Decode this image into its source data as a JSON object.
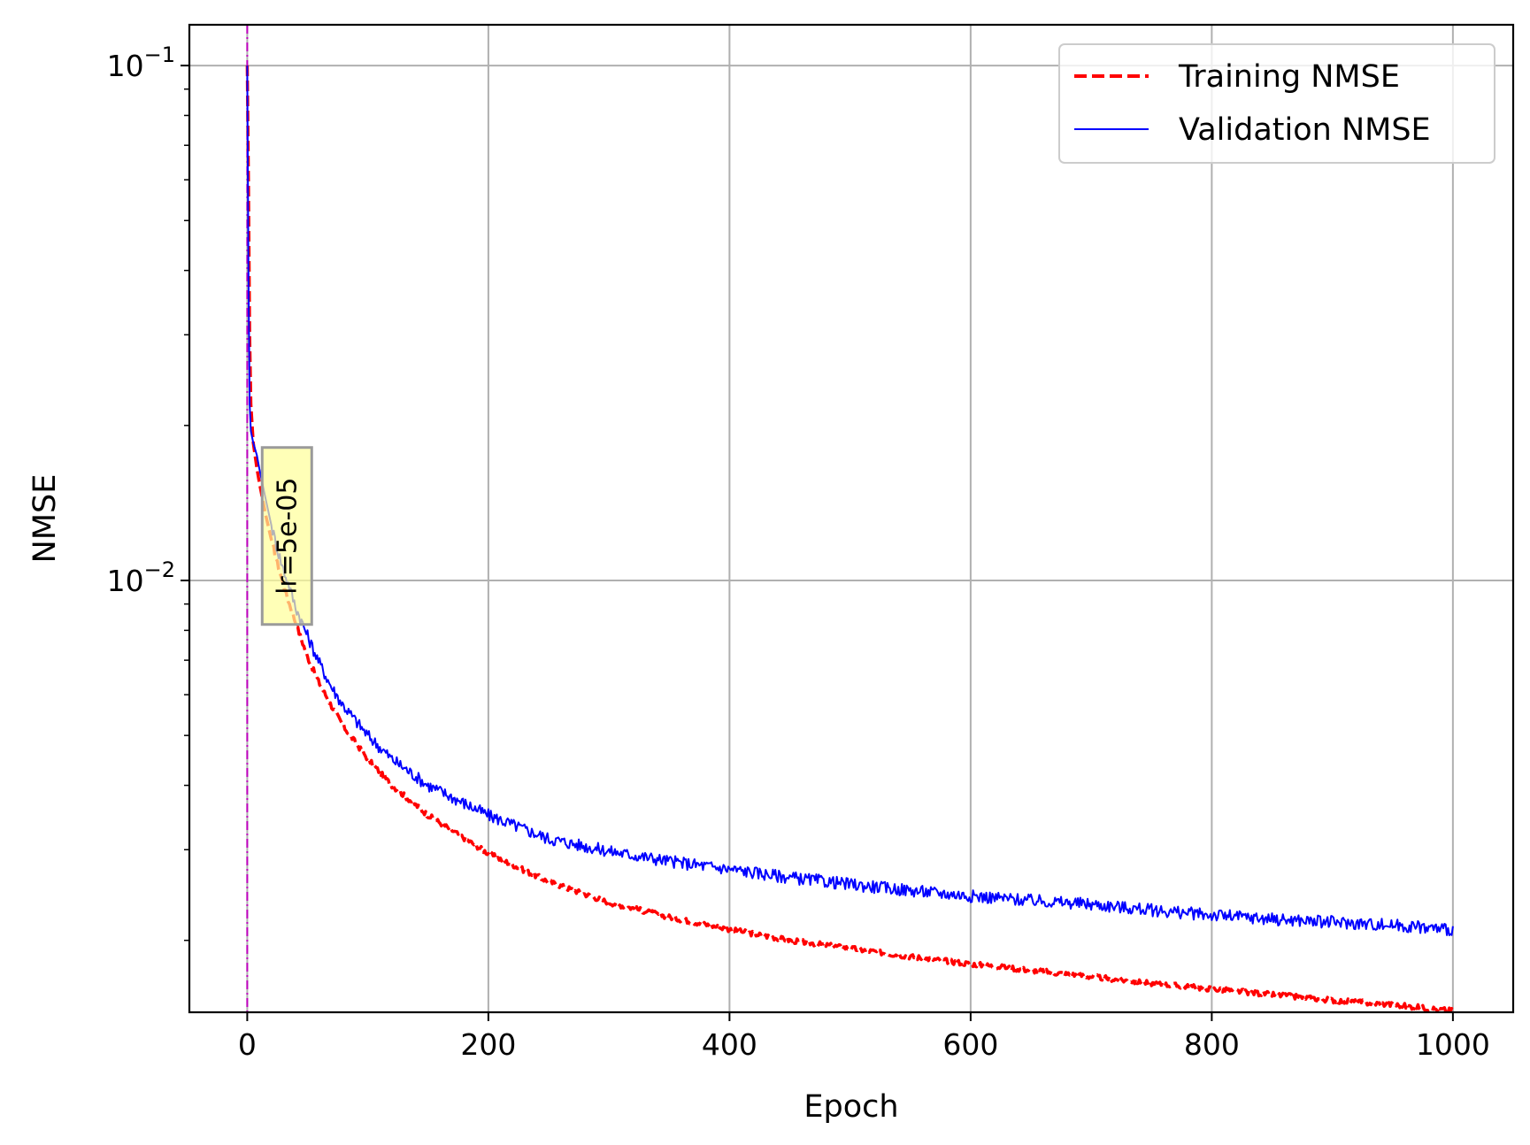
{
  "chart_data": {
    "type": "line",
    "xlabel": "Epoch",
    "ylabel": "NMSE",
    "xlim": [
      -48,
      1050
    ],
    "ylim": [
      0.00145,
      0.12
    ],
    "yscale": "log",
    "grid": true,
    "x_ticks": [
      0,
      200,
      400,
      600,
      800,
      1000
    ],
    "x_tick_labels": [
      "0",
      "200",
      "400",
      "600",
      "800",
      "1000"
    ],
    "y_major_ticks": [
      0.01,
      0.1
    ],
    "y_tick_labels": [
      {
        "base": "10",
        "exp": "−2",
        "value": 0.01
      },
      {
        "base": "10",
        "exp": "−1",
        "value": 0.1
      }
    ],
    "legend_position": "top-right",
    "series": [
      {
        "name": "Training NMSE",
        "color": "#ff0000",
        "style": "dashed",
        "x": [
          0,
          1,
          2,
          3,
          5,
          8,
          10,
          15,
          20,
          25,
          30,
          35,
          40,
          50,
          60,
          70,
          80,
          100,
          120,
          150,
          200,
          250,
          300,
          350,
          400,
          450,
          500,
          550,
          600,
          650,
          700,
          750,
          800,
          850,
          900,
          950,
          1000
        ],
        "values": [
          0.1,
          0.06,
          0.03,
          0.022,
          0.0185,
          0.0165,
          0.0155,
          0.0135,
          0.012,
          0.0108,
          0.0098,
          0.009,
          0.0083,
          0.0071,
          0.0063,
          0.0057,
          0.0052,
          0.0045,
          0.004,
          0.0035,
          0.00295,
          0.0026,
          0.00237,
          0.00222,
          0.0021,
          0.002,
          0.00193,
          0.00186,
          0.0018,
          0.00175,
          0.0017,
          0.00165,
          0.00161,
          0.00157,
          0.00153,
          0.0015,
          0.00146
        ]
      },
      {
        "name": "Validation NMSE",
        "color": "#0000ff",
        "style": "solid",
        "x": [
          0,
          1,
          2,
          3,
          5,
          8,
          10,
          15,
          20,
          25,
          30,
          35,
          40,
          50,
          60,
          70,
          80,
          100,
          120,
          150,
          200,
          250,
          300,
          350,
          400,
          450,
          500,
          550,
          600,
          650,
          700,
          750,
          800,
          850,
          900,
          950,
          1000
        ],
        "values": [
          0.1,
          0.04,
          0.022,
          0.0195,
          0.0185,
          0.0175,
          0.0165,
          0.0145,
          0.0128,
          0.0115,
          0.0105,
          0.0097,
          0.0089,
          0.0078,
          0.0069,
          0.0062,
          0.0057,
          0.005,
          0.0045,
          0.004,
          0.0035,
          0.00315,
          0.00298,
          0.00285,
          0.00275,
          0.00265,
          0.00257,
          0.0025,
          0.00244,
          0.00239,
          0.00235,
          0.00229,
          0.00224,
          0.0022,
          0.00217,
          0.00214,
          0.0021
        ]
      }
    ],
    "reference_line": {
      "x": 0,
      "color": "#bf00bf",
      "style": "dashdot"
    },
    "annotation": {
      "text": "lr=5e-05",
      "x": 30,
      "y": 0.0122,
      "rotation": -90
    }
  }
}
